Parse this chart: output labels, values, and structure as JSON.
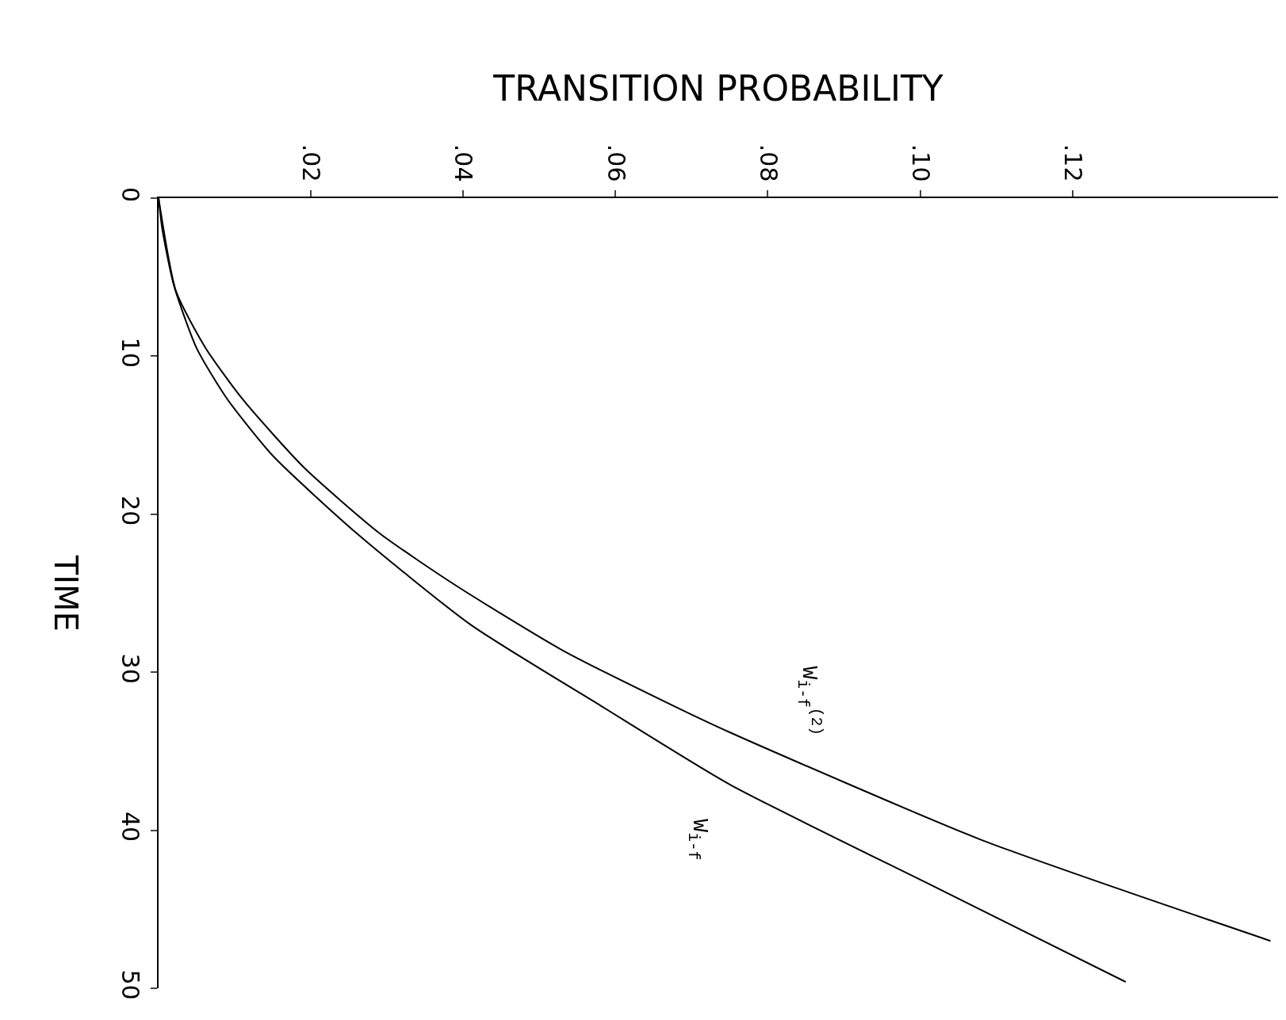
{
  "chart_data": {
    "type": "line",
    "orientation": "horizontal",
    "xlabel": "TRANSITION PROBABILITY",
    "ylabel": "TIME",
    "xlim": [
      0,
      0.147
    ],
    "xticks": [
      {
        "value": 0.02,
        "label": ".02"
      },
      {
        "value": 0.04,
        "label": ".04"
      },
      {
        "value": 0.06,
        "label": ".06"
      },
      {
        "value": 0.08,
        "label": ".08"
      },
      {
        "value": 0.1,
        "label": ".10"
      },
      {
        "value": 0.12,
        "label": ".12"
      }
    ],
    "ylim": [
      50,
      0
    ],
    "yticks": [
      0,
      10,
      20,
      30,
      40,
      50
    ],
    "grid": false,
    "legend": false,
    "marker": "none",
    "line_style": "solid",
    "series": [
      {
        "name": "W$_{i-f}$",
        "color": "#000000",
        "x": [
          0,
          2,
          5.5,
          9.5,
          12.7,
          16.3,
          21.2,
          27,
          32.1,
          37.1,
          43.6,
          49.6
        ],
        "values": [
          0,
          0.0005,
          0.002,
          0.005,
          0.009,
          0.015,
          0.026,
          0.041,
          0.058,
          0.075,
          0.102,
          0.127
        ]
      },
      {
        "name": "W$_{i-f}$$^{(2)}$",
        "color": "#000000",
        "x": [
          0,
          5.9,
          9.5,
          12.7,
          17,
          21.2,
          24.5,
          28.6,
          32.1,
          33.8,
          40.6,
          47
        ],
        "values": [
          0,
          0.0023,
          0.0062,
          0.011,
          0.019,
          0.029,
          0.039,
          0.053,
          0.0675,
          0.075,
          0.108,
          0.146
        ]
      }
    ]
  }
}
